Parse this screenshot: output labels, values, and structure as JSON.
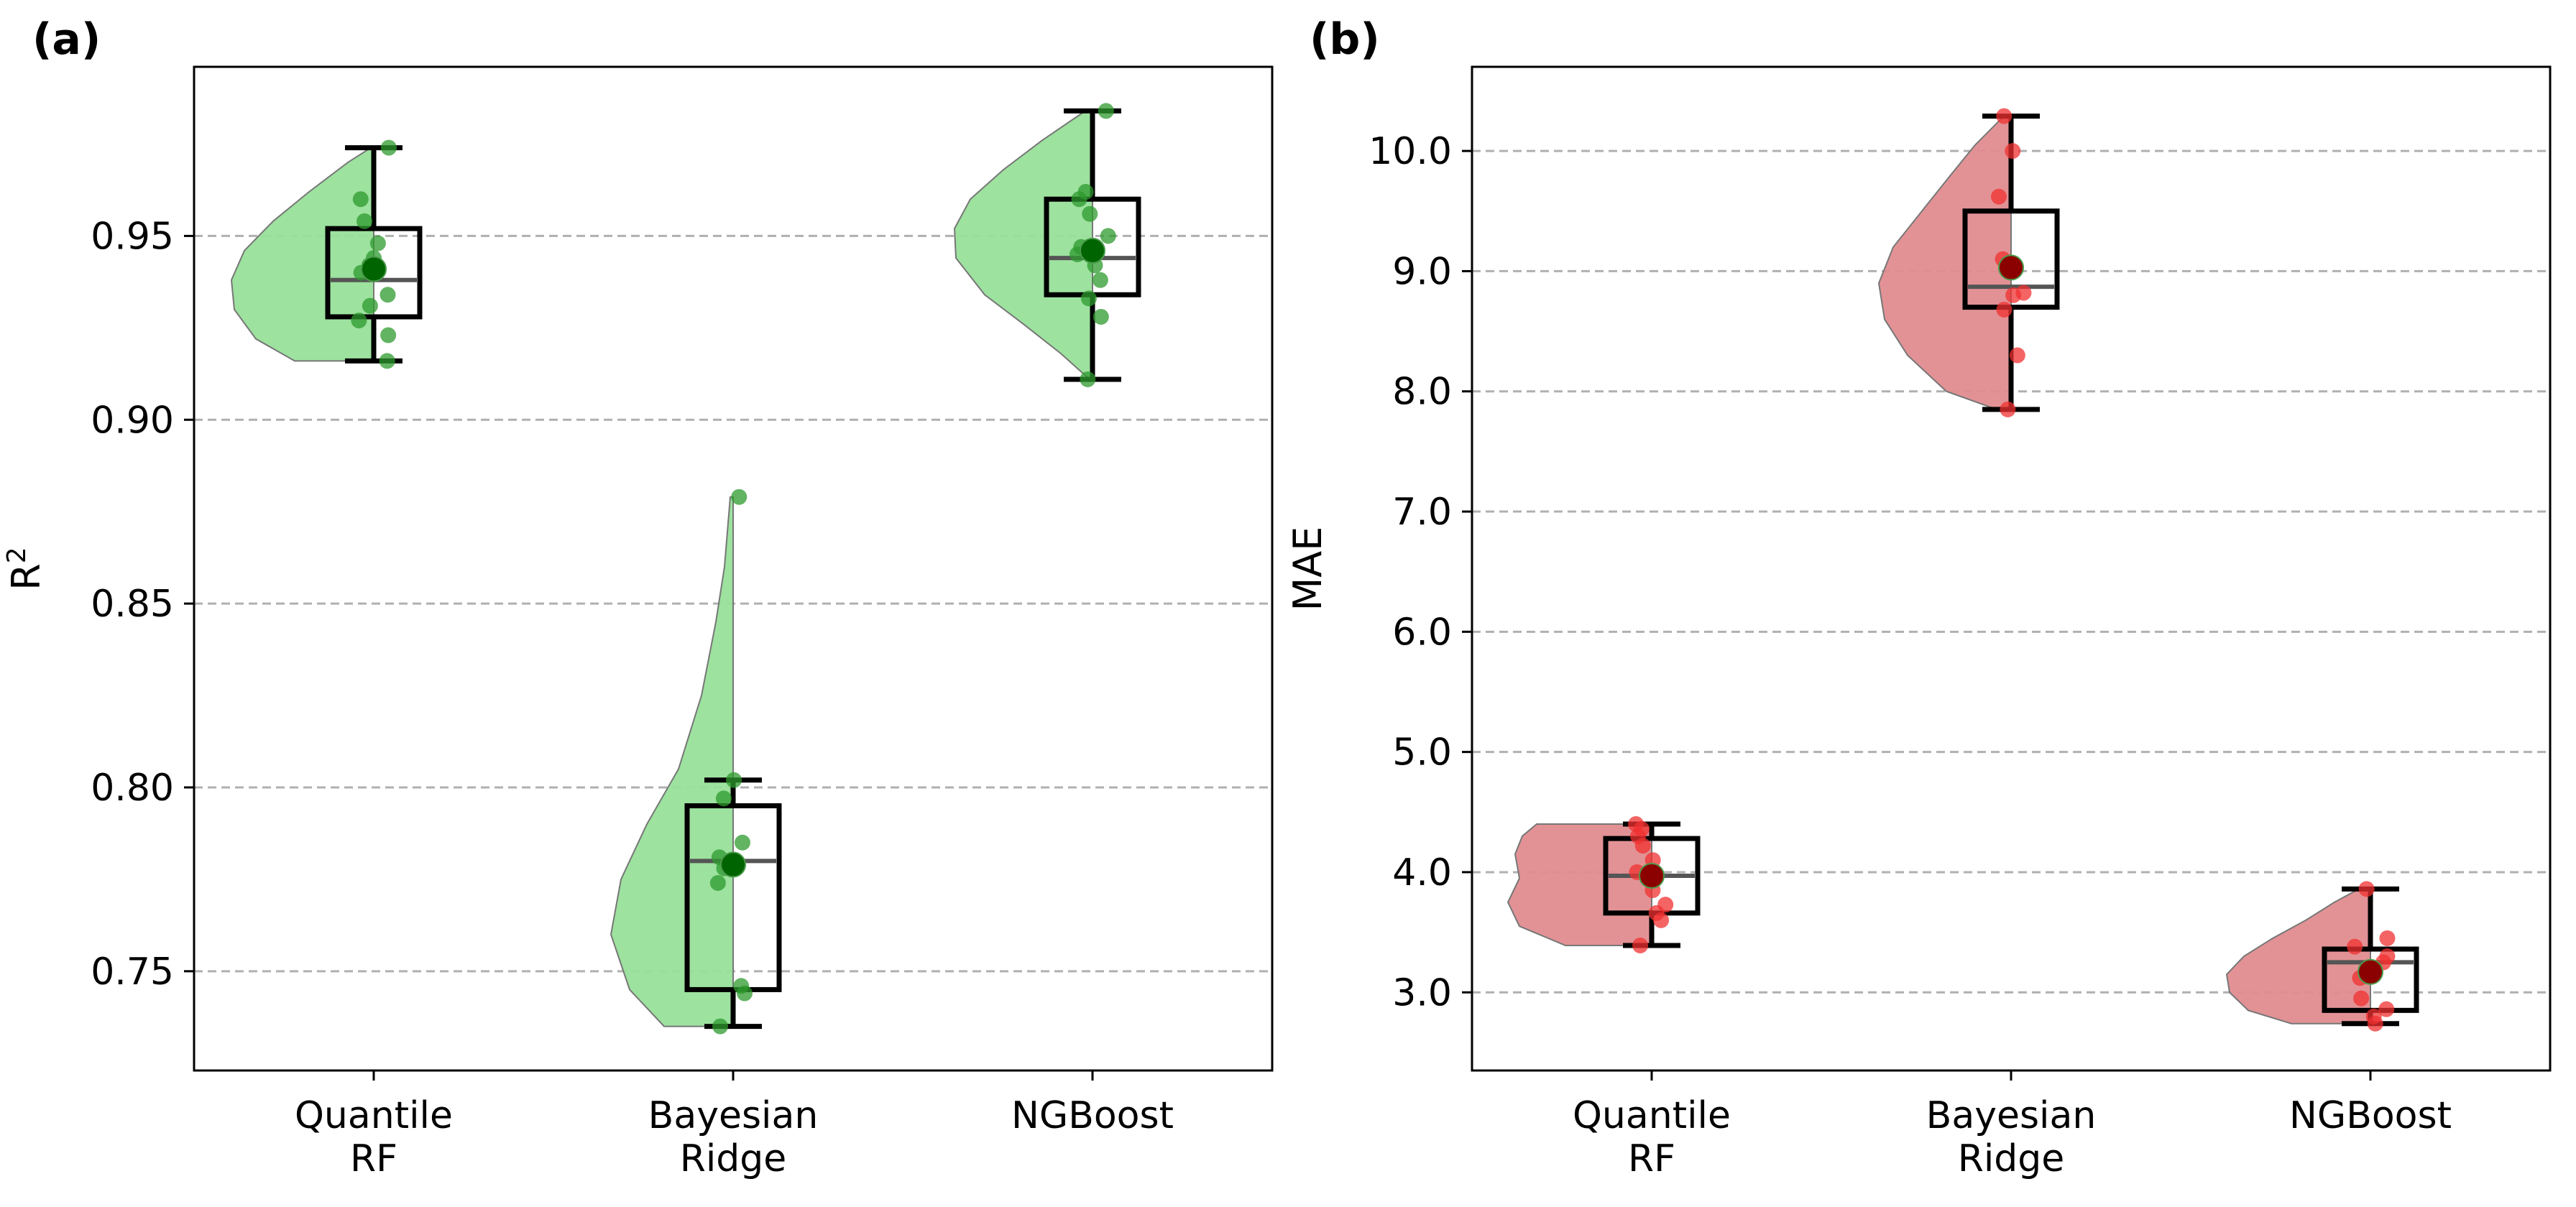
{
  "chart_data": [
    {
      "type": "violin-box",
      "panel_label": "(a)",
      "ylabel": "R",
      "ylabel_superscript": "2",
      "categories": [
        {
          "lines": [
            "Quantile",
            "RF"
          ]
        },
        {
          "lines": [
            "Bayesian",
            "Ridge"
          ]
        },
        {
          "lines": [
            "NGBoost"
          ]
        }
      ],
      "ylim": [
        0.723,
        0.996
      ],
      "yticks": [
        0.75,
        0.8,
        0.85,
        0.9,
        0.95
      ],
      "ytick_labels": [
        "0.75",
        "0.80",
        "0.85",
        "0.90",
        "0.95"
      ],
      "grid": "horizontal dashed",
      "violin_color": "#98e09a",
      "point_color": "#2e9a2e",
      "mean_color": "#006400",
      "series": [
        {
          "name": "Quantile RF",
          "box": {
            "whislo": 0.916,
            "q1": 0.928,
            "med": 0.938,
            "q3": 0.952,
            "whishi": 0.974
          },
          "mean": 0.941,
          "points": [
            0.916,
            0.923,
            0.927,
            0.931,
            0.934,
            0.94,
            0.942,
            0.944,
            0.948,
            0.954,
            0.96,
            0.974
          ],
          "violin": [
            [
              0.916,
              0.55
            ],
            [
              0.922,
              0.82
            ],
            [
              0.93,
              0.97
            ],
            [
              0.938,
              0.99
            ],
            [
              0.946,
              0.9
            ],
            [
              0.954,
              0.7
            ],
            [
              0.962,
              0.45
            ],
            [
              0.97,
              0.18
            ],
            [
              0.974,
              0.02
            ]
          ]
        },
        {
          "name": "Bayesian Ridge",
          "box": {
            "whislo": 0.735,
            "q1": 0.745,
            "med": 0.78,
            "q3": 0.795,
            "whishi": 0.802
          },
          "mean": 0.779,
          "points": [
            0.735,
            0.744,
            0.746,
            0.774,
            0.778,
            0.781,
            0.785,
            0.797,
            0.802,
            0.879
          ],
          "violin": [
            [
              0.735,
              0.48
            ],
            [
              0.745,
              0.72
            ],
            [
              0.76,
              0.85
            ],
            [
              0.775,
              0.78
            ],
            [
              0.79,
              0.6
            ],
            [
              0.805,
              0.38
            ],
            [
              0.825,
              0.22
            ],
            [
              0.845,
              0.12
            ],
            [
              0.86,
              0.06
            ],
            [
              0.879,
              0.02
            ]
          ]
        },
        {
          "name": "NGBoost",
          "box": {
            "whislo": 0.911,
            "q1": 0.934,
            "med": 0.944,
            "q3": 0.96,
            "whishi": 0.984
          },
          "mean": 0.946,
          "points": [
            0.911,
            0.928,
            0.933,
            0.938,
            0.942,
            0.945,
            0.947,
            0.95,
            0.956,
            0.96,
            0.962,
            0.984
          ],
          "violin": [
            [
              0.911,
              0.02
            ],
            [
              0.918,
              0.22
            ],
            [
              0.926,
              0.48
            ],
            [
              0.934,
              0.75
            ],
            [
              0.944,
              0.95
            ],
            [
              0.952,
              0.96
            ],
            [
              0.96,
              0.85
            ],
            [
              0.968,
              0.62
            ],
            [
              0.976,
              0.35
            ],
            [
              0.984,
              0.05
            ]
          ]
        }
      ]
    },
    {
      "type": "violin-box",
      "panel_label": "(b)",
      "ylabel": "MAE",
      "ylabel_superscript": "",
      "categories": [
        {
          "lines": [
            "Quantile",
            "RF"
          ]
        },
        {
          "lines": [
            "Bayesian",
            "Ridge"
          ]
        },
        {
          "lines": [
            "NGBoost"
          ]
        }
      ],
      "ylim": [
        2.35,
        10.7
      ],
      "yticks": [
        3.0,
        4.0,
        5.0,
        6.0,
        7.0,
        8.0,
        9.0,
        10.0
      ],
      "ytick_labels": [
        "3.0",
        "4.0",
        "5.0",
        "6.0",
        "7.0",
        "8.0",
        "9.0",
        "10.0"
      ],
      "grid": "horizontal dashed",
      "violin_color": "#e08c8f",
      "point_color": "#f03030",
      "mean_color": "#8b0000",
      "series": [
        {
          "name": "Quantile RF",
          "box": {
            "whislo": 3.39,
            "q1": 3.66,
            "med": 3.97,
            "q3": 4.28,
            "whishi": 4.4
          },
          "mean": 3.97,
          "points": [
            3.39,
            3.6,
            3.66,
            3.73,
            3.85,
            3.95,
            4.0,
            4.1,
            4.22,
            4.3,
            4.36,
            4.4
          ],
          "violin": [
            [
              3.39,
              0.6
            ],
            [
              3.55,
              0.92
            ],
            [
              3.75,
              1.0
            ],
            [
              3.95,
              0.92
            ],
            [
              4.15,
              0.95
            ],
            [
              4.3,
              0.9
            ],
            [
              4.4,
              0.8
            ]
          ]
        },
        {
          "name": "Bayesian Ridge",
          "box": {
            "whislo": 7.85,
            "q1": 8.7,
            "med": 8.87,
            "q3": 9.5,
            "whishi": 10.29
          },
          "mean": 9.03,
          "points": [
            7.85,
            8.3,
            8.68,
            8.8,
            8.82,
            9.0,
            9.05,
            9.1,
            9.62,
            10.0,
            10.29
          ],
          "violin": [
            [
              7.85,
              0.1
            ],
            [
              8.0,
              0.45
            ],
            [
              8.3,
              0.72
            ],
            [
              8.6,
              0.88
            ],
            [
              8.9,
              0.92
            ],
            [
              9.2,
              0.82
            ],
            [
              9.5,
              0.62
            ],
            [
              9.8,
              0.42
            ],
            [
              10.05,
              0.25
            ],
            [
              10.29,
              0.05
            ]
          ]
        },
        {
          "name": "NGBoost",
          "box": {
            "whislo": 2.74,
            "q1": 2.85,
            "med": 3.25,
            "q3": 3.36,
            "whishi": 3.86
          },
          "mean": 3.17,
          "points": [
            2.74,
            2.8,
            2.86,
            2.95,
            3.12,
            3.2,
            3.25,
            3.3,
            3.38,
            3.45,
            3.86
          ],
          "violin": [
            [
              2.74,
              0.55
            ],
            [
              2.85,
              0.85
            ],
            [
              3.0,
              0.98
            ],
            [
              3.15,
              1.0
            ],
            [
              3.3,
              0.88
            ],
            [
              3.45,
              0.68
            ],
            [
              3.6,
              0.45
            ],
            [
              3.75,
              0.25
            ],
            [
              3.86,
              0.08
            ]
          ]
        }
      ]
    }
  ]
}
